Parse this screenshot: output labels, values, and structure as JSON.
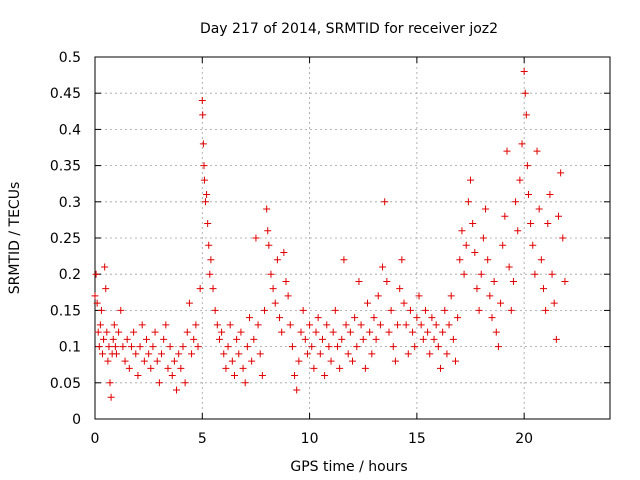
{
  "chart_data": {
    "type": "scatter",
    "title": "Day 217 of 2014, SRMTID for receiver joz2",
    "xlabel": "GPS time / hours",
    "ylabel": "SRMTID / TECUs",
    "xlim": [
      0,
      24
    ],
    "ylim": [
      0,
      0.5
    ],
    "xticks": [
      0,
      5,
      10,
      15,
      20
    ],
    "xtick_labels": [
      "0",
      "5",
      "10",
      "15",
      "20"
    ],
    "yticks": [
      0,
      0.05,
      0.1,
      0.15,
      0.2,
      0.25,
      0.3,
      0.35,
      0.4,
      0.45,
      0.5
    ],
    "ytick_labels": [
      "0",
      "0.05",
      "0.1",
      "0.15",
      "0.2",
      "0.25",
      "0.3",
      "0.35",
      "0.4",
      "0.45",
      "0.5"
    ],
    "grid": true,
    "marker": "+",
    "marker_color": "#e00000",
    "series": [
      {
        "name": "SRMTID",
        "points": [
          [
            0.0,
            0.17
          ],
          [
            0.05,
            0.2
          ],
          [
            0.1,
            0.16
          ],
          [
            0.15,
            0.12
          ],
          [
            0.2,
            0.1
          ],
          [
            0.25,
            0.13
          ],
          [
            0.3,
            0.15
          ],
          [
            0.35,
            0.09
          ],
          [
            0.4,
            0.11
          ],
          [
            0.45,
            0.21
          ],
          [
            0.5,
            0.18
          ],
          [
            0.55,
            0.12
          ],
          [
            0.6,
            0.08
          ],
          [
            0.65,
            0.1
          ],
          [
            0.7,
            0.05
          ],
          [
            0.75,
            0.03
          ],
          [
            0.8,
            0.09
          ],
          [
            0.85,
            0.11
          ],
          [
            0.9,
            0.13
          ],
          [
            0.95,
            0.1
          ],
          [
            1.0,
            0.09
          ],
          [
            1.1,
            0.12
          ],
          [
            1.2,
            0.15
          ],
          [
            1.3,
            0.1
          ],
          [
            1.4,
            0.08
          ],
          [
            1.5,
            0.11
          ],
          [
            1.6,
            0.07
          ],
          [
            1.7,
            0.1
          ],
          [
            1.8,
            0.12
          ],
          [
            1.9,
            0.09
          ],
          [
            2.0,
            0.06
          ],
          [
            2.1,
            0.1
          ],
          [
            2.2,
            0.13
          ],
          [
            2.3,
            0.08
          ],
          [
            2.4,
            0.11
          ],
          [
            2.5,
            0.09
          ],
          [
            2.6,
            0.07
          ],
          [
            2.7,
            0.1
          ],
          [
            2.8,
            0.12
          ],
          [
            2.9,
            0.08
          ],
          [
            3.0,
            0.05
          ],
          [
            3.1,
            0.09
          ],
          [
            3.2,
            0.11
          ],
          [
            3.3,
            0.13
          ],
          [
            3.4,
            0.07
          ],
          [
            3.5,
            0.1
          ],
          [
            3.6,
            0.06
          ],
          [
            3.7,
            0.08
          ],
          [
            3.8,
            0.04
          ],
          [
            3.9,
            0.09
          ],
          [
            4.0,
            0.07
          ],
          [
            4.1,
            0.1
          ],
          [
            4.2,
            0.05
          ],
          [
            4.3,
            0.12
          ],
          [
            4.4,
            0.16
          ],
          [
            4.5,
            0.09
          ],
          [
            4.6,
            0.11
          ],
          [
            4.7,
            0.13
          ],
          [
            4.8,
            0.1
          ],
          [
            4.9,
            0.18
          ],
          [
            5.0,
            0.44
          ],
          [
            5.02,
            0.42
          ],
          [
            5.05,
            0.38
          ],
          [
            5.08,
            0.35
          ],
          [
            5.1,
            0.33
          ],
          [
            5.15,
            0.3
          ],
          [
            5.2,
            0.31
          ],
          [
            5.25,
            0.27
          ],
          [
            5.3,
            0.24
          ],
          [
            5.35,
            0.2
          ],
          [
            5.4,
            0.22
          ],
          [
            5.5,
            0.18
          ],
          [
            5.6,
            0.15
          ],
          [
            5.7,
            0.13
          ],
          [
            5.8,
            0.11
          ],
          [
            5.9,
            0.12
          ],
          [
            6.0,
            0.09
          ],
          [
            6.1,
            0.07
          ],
          [
            6.2,
            0.1
          ],
          [
            6.3,
            0.13
          ],
          [
            6.4,
            0.08
          ],
          [
            6.5,
            0.06
          ],
          [
            6.6,
            0.11
          ],
          [
            6.7,
            0.09
          ],
          [
            6.8,
            0.12
          ],
          [
            6.9,
            0.07
          ],
          [
            7.0,
            0.05
          ],
          [
            7.1,
            0.1
          ],
          [
            7.2,
            0.14
          ],
          [
            7.3,
            0.08
          ],
          [
            7.4,
            0.11
          ],
          [
            7.5,
            0.25
          ],
          [
            7.6,
            0.13
          ],
          [
            7.7,
            0.09
          ],
          [
            7.8,
            0.06
          ],
          [
            7.9,
            0.15
          ],
          [
            8.0,
            0.29
          ],
          [
            8.05,
            0.26
          ],
          [
            8.1,
            0.24
          ],
          [
            8.2,
            0.2
          ],
          [
            8.3,
            0.18
          ],
          [
            8.4,
            0.16
          ],
          [
            8.5,
            0.22
          ],
          [
            8.6,
            0.14
          ],
          [
            8.7,
            0.12
          ],
          [
            8.8,
            0.23
          ],
          [
            8.9,
            0.19
          ],
          [
            9.0,
            0.17
          ],
          [
            9.1,
            0.13
          ],
          [
            9.2,
            0.1
          ],
          [
            9.3,
            0.06
          ],
          [
            9.4,
            0.04
          ],
          [
            9.5,
            0.08
          ],
          [
            9.6,
            0.12
          ],
          [
            9.7,
            0.15
          ],
          [
            9.8,
            0.11
          ],
          [
            9.9,
            0.09
          ],
          [
            10.0,
            0.13
          ],
          [
            10.1,
            0.1
          ],
          [
            10.2,
            0.07
          ],
          [
            10.3,
            0.12
          ],
          [
            10.4,
            0.14
          ],
          [
            10.5,
            0.09
          ],
          [
            10.6,
            0.11
          ],
          [
            10.7,
            0.06
          ],
          [
            10.8,
            0.13
          ],
          [
            10.9,
            0.1
          ],
          [
            11.0,
            0.08
          ],
          [
            11.1,
            0.12
          ],
          [
            11.2,
            0.15
          ],
          [
            11.3,
            0.1
          ],
          [
            11.4,
            0.07
          ],
          [
            11.5,
            0.11
          ],
          [
            11.6,
            0.22
          ],
          [
            11.7,
            0.13
          ],
          [
            11.8,
            0.09
          ],
          [
            11.9,
            0.12
          ],
          [
            12.0,
            0.08
          ],
          [
            12.1,
            0.14
          ],
          [
            12.2,
            0.1
          ],
          [
            12.3,
            0.19
          ],
          [
            12.4,
            0.13
          ],
          [
            12.5,
            0.11
          ],
          [
            12.6,
            0.07
          ],
          [
            12.7,
            0.16
          ],
          [
            12.8,
            0.12
          ],
          [
            12.9,
            0.09
          ],
          [
            13.0,
            0.14
          ],
          [
            13.1,
            0.11
          ],
          [
            13.2,
            0.17
          ],
          [
            13.3,
            0.13
          ],
          [
            13.4,
            0.21
          ],
          [
            13.5,
            0.3
          ],
          [
            13.6,
            0.19
          ],
          [
            13.7,
            0.12
          ],
          [
            13.8,
            0.15
          ],
          [
            13.9,
            0.1
          ],
          [
            14.0,
            0.08
          ],
          [
            14.1,
            0.13
          ],
          [
            14.2,
            0.18
          ],
          [
            14.3,
            0.22
          ],
          [
            14.4,
            0.16
          ],
          [
            14.5,
            0.13
          ],
          [
            14.6,
            0.09
          ],
          [
            14.7,
            0.15
          ],
          [
            14.8,
            0.12
          ],
          [
            14.9,
            0.1
          ],
          [
            15.0,
            0.14
          ],
          [
            15.1,
            0.17
          ],
          [
            15.2,
            0.13
          ],
          [
            15.3,
            0.11
          ],
          [
            15.4,
            0.15
          ],
          [
            15.5,
            0.12
          ],
          [
            15.6,
            0.09
          ],
          [
            15.7,
            0.14
          ],
          [
            15.8,
            0.11
          ],
          [
            15.9,
            0.13
          ],
          [
            16.0,
            0.1
          ],
          [
            16.1,
            0.07
          ],
          [
            16.2,
            0.12
          ],
          [
            16.3,
            0.15
          ],
          [
            16.4,
            0.09
          ],
          [
            16.5,
            0.13
          ],
          [
            16.6,
            0.17
          ],
          [
            16.7,
            0.11
          ],
          [
            16.8,
            0.08
          ],
          [
            16.9,
            0.14
          ],
          [
            17.0,
            0.22
          ],
          [
            17.1,
            0.26
          ],
          [
            17.2,
            0.2
          ],
          [
            17.3,
            0.24
          ],
          [
            17.4,
            0.3
          ],
          [
            17.5,
            0.33
          ],
          [
            17.6,
            0.27
          ],
          [
            17.7,
            0.23
          ],
          [
            17.8,
            0.18
          ],
          [
            17.9,
            0.15
          ],
          [
            18.0,
            0.2
          ],
          [
            18.1,
            0.25
          ],
          [
            18.2,
            0.29
          ],
          [
            18.3,
            0.22
          ],
          [
            18.4,
            0.17
          ],
          [
            18.5,
            0.14
          ],
          [
            18.6,
            0.19
          ],
          [
            18.7,
            0.12
          ],
          [
            18.8,
            0.1
          ],
          [
            18.9,
            0.16
          ],
          [
            19.0,
            0.24
          ],
          [
            19.1,
            0.28
          ],
          [
            19.2,
            0.37
          ],
          [
            19.3,
            0.21
          ],
          [
            19.4,
            0.15
          ],
          [
            19.5,
            0.19
          ],
          [
            19.6,
            0.3
          ],
          [
            19.7,
            0.26
          ],
          [
            19.8,
            0.33
          ],
          [
            19.9,
            0.38
          ],
          [
            20.0,
            0.48
          ],
          [
            20.05,
            0.45
          ],
          [
            20.1,
            0.42
          ],
          [
            20.15,
            0.35
          ],
          [
            20.2,
            0.31
          ],
          [
            20.3,
            0.27
          ],
          [
            20.4,
            0.24
          ],
          [
            20.5,
            0.2
          ],
          [
            20.6,
            0.37
          ],
          [
            20.7,
            0.29
          ],
          [
            20.8,
            0.22
          ],
          [
            20.9,
            0.18
          ],
          [
            21.0,
            0.15
          ],
          [
            21.1,
            0.27
          ],
          [
            21.2,
            0.31
          ],
          [
            21.3,
            0.2
          ],
          [
            21.4,
            0.16
          ],
          [
            21.5,
            0.11
          ],
          [
            21.6,
            0.28
          ],
          [
            21.7,
            0.34
          ],
          [
            21.8,
            0.25
          ],
          [
            21.9,
            0.19
          ]
        ]
      }
    ]
  }
}
